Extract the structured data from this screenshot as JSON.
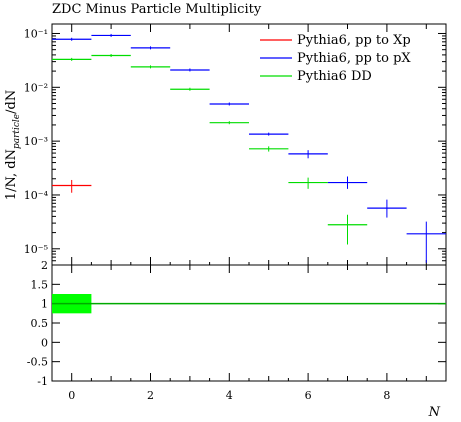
{
  "chart_data": {
    "type": "line",
    "title": "ZDC Minus Particle Multiplicity",
    "xlabel": "N",
    "ylabel": "1/N, dN_particle/dN",
    "ylabel_main": "1/N, dN",
    "ylabel_sub": "particle",
    "ylabel_end": "/dN",
    "xlim": [
      -0.5,
      9.5
    ],
    "ylim": [
      5e-06,
      0.15
    ],
    "log_y": true,
    "x_ticks": [
      0,
      2,
      4,
      6,
      8
    ],
    "y_ticks": [
      {
        "value": 0.1,
        "label": "10⁻¹"
      },
      {
        "value": 0.01,
        "label": "10⁻²"
      },
      {
        "value": 0.001,
        "label": "10⁻³"
      },
      {
        "value": 0.0001,
        "label": "10⁻⁴"
      },
      {
        "value": 1e-05,
        "label": "10⁻⁵"
      }
    ],
    "legend_position": "top-right",
    "series": [
      {
        "name": "Pythia6, pp to Xp",
        "color": "#ff0000",
        "points": [
          {
            "x": 0,
            "y": 0.00015,
            "yerr_low": 0.00011,
            "yerr_high": 0.00019
          }
        ]
      },
      {
        "name": "Pythia6, pp to pX",
        "color": "#0000ff",
        "points": [
          {
            "x": 0,
            "y": 0.078
          },
          {
            "x": 1,
            "y": 0.092
          },
          {
            "x": 2,
            "y": 0.054
          },
          {
            "x": 3,
            "y": 0.021
          },
          {
            "x": 4,
            "y": 0.0049
          },
          {
            "x": 5,
            "y": 0.00135
          },
          {
            "x": 6,
            "y": 0.00058,
            "yerr_low": 0.00048,
            "yerr_high": 0.00068
          },
          {
            "x": 7,
            "y": 0.00017,
            "yerr_low": 0.00013,
            "yerr_high": 0.00022
          },
          {
            "x": 8,
            "y": 5.7e-05,
            "yerr_low": 3.8e-05,
            "yerr_high": 8.2e-05
          },
          {
            "x": 9,
            "y": 1.9e-05,
            "yerr_low": 5.5e-06,
            "yerr_high": 3.2e-05
          }
        ]
      },
      {
        "name": "Pythia6 DD",
        "color": "#00dd00",
        "points": [
          {
            "x": 0,
            "y": 0.033
          },
          {
            "x": 1,
            "y": 0.039
          },
          {
            "x": 2,
            "y": 0.024
          },
          {
            "x": 3,
            "y": 0.0092
          },
          {
            "x": 4,
            "y": 0.0022
          },
          {
            "x": 5,
            "y": 0.00072,
            "yerr_low": 0.00064,
            "yerr_high": 0.0008
          },
          {
            "x": 6,
            "y": 0.00017,
            "yerr_low": 0.00013,
            "yerr_high": 0.00021
          },
          {
            "x": 7,
            "y": 2.8e-05,
            "yerr_low": 1.2e-05,
            "yerr_high": 4.3e-05
          }
        ]
      }
    ],
    "ratio_panel": {
      "ylim": [
        -1,
        2
      ],
      "y_ticks": [
        {
          "value": 2,
          "label": "2"
        },
        {
          "value": 1.5,
          "label": "1.5"
        },
        {
          "value": 1,
          "label": "1"
        },
        {
          "value": 0.5,
          "label": "0.5"
        },
        {
          "value": 0,
          "label": "0"
        },
        {
          "value": -0.5,
          "label": "-0.5"
        },
        {
          "value": -1,
          "label": "-1"
        }
      ],
      "reference_value": 1,
      "reference_color": "#00aa00",
      "band": {
        "x_low": -0.5,
        "x_high": 0.5,
        "y_low": 0.75,
        "y_high": 1.25,
        "color": "#00ff00"
      }
    }
  }
}
